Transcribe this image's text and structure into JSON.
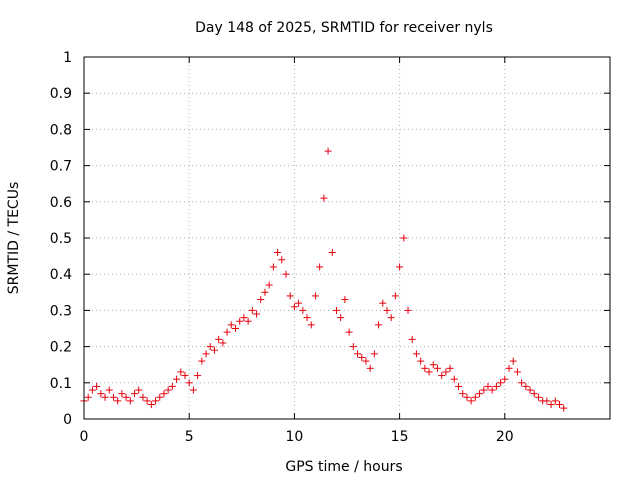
{
  "chart_data": {
    "type": "scatter",
    "title": "Day 148 of 2025, SRMTID for receiver nyls",
    "xlabel": "GPS time / hours",
    "ylabel": "SRMTID / TECUs",
    "xlim": [
      0,
      25
    ],
    "ylim": [
      0,
      1
    ],
    "xticks": [
      0,
      5,
      10,
      15,
      20
    ],
    "yticks": [
      0,
      0.1,
      0.2,
      0.3,
      0.4,
      0.5,
      0.6,
      0.7,
      0.8,
      0.9,
      1
    ],
    "grid": true,
    "marker": "+",
    "color": "#e8000d",
    "series": [
      {
        "name": "SRMTID",
        "x": [
          0.0,
          0.2,
          0.4,
          0.6,
          0.8,
          1.0,
          1.2,
          1.4,
          1.6,
          1.8,
          2.0,
          2.2,
          2.4,
          2.6,
          2.8,
          3.0,
          3.2,
          3.4,
          3.6,
          3.8,
          4.0,
          4.2,
          4.4,
          4.6,
          4.8,
          5.0,
          5.2,
          5.4,
          5.6,
          5.8,
          6.0,
          6.2,
          6.4,
          6.6,
          6.8,
          7.0,
          7.2,
          7.4,
          7.6,
          7.8,
          8.0,
          8.2,
          8.4,
          8.6,
          8.8,
          9.0,
          9.2,
          9.4,
          9.6,
          9.8,
          10.0,
          10.2,
          10.4,
          10.6,
          10.8,
          11.0,
          11.2,
          11.4,
          11.6,
          11.8,
          12.0,
          12.2,
          12.4,
          12.6,
          12.8,
          13.0,
          13.2,
          13.4,
          13.6,
          13.8,
          14.0,
          14.2,
          14.4,
          14.6,
          14.8,
          15.0,
          15.2,
          15.4,
          15.6,
          15.8,
          16.0,
          16.2,
          16.4,
          16.6,
          16.8,
          17.0,
          17.2,
          17.4,
          17.6,
          17.8,
          18.0,
          18.2,
          18.4,
          18.6,
          18.8,
          19.0,
          19.2,
          19.4,
          19.6,
          19.8,
          20.0,
          20.2,
          20.4,
          20.6,
          20.8,
          21.0,
          21.2,
          21.4,
          21.6,
          21.8,
          22.0,
          22.2,
          22.4,
          22.6,
          22.8
        ],
        "y": [
          0.05,
          0.06,
          0.08,
          0.09,
          0.07,
          0.06,
          0.08,
          0.06,
          0.05,
          0.07,
          0.06,
          0.05,
          0.07,
          0.08,
          0.06,
          0.05,
          0.04,
          0.05,
          0.06,
          0.07,
          0.08,
          0.09,
          0.11,
          0.13,
          0.12,
          0.1,
          0.08,
          0.12,
          0.16,
          0.18,
          0.2,
          0.19,
          0.22,
          0.21,
          0.24,
          0.26,
          0.25,
          0.27,
          0.28,
          0.27,
          0.3,
          0.29,
          0.33,
          0.35,
          0.37,
          0.42,
          0.46,
          0.44,
          0.4,
          0.34,
          0.31,
          0.32,
          0.3,
          0.28,
          0.26,
          0.34,
          0.42,
          0.61,
          0.74,
          0.46,
          0.3,
          0.28,
          0.33,
          0.24,
          0.2,
          0.18,
          0.17,
          0.16,
          0.14,
          0.18,
          0.26,
          0.32,
          0.3,
          0.28,
          0.34,
          0.42,
          0.5,
          0.3,
          0.22,
          0.18,
          0.16,
          0.14,
          0.13,
          0.15,
          0.14,
          0.12,
          0.13,
          0.14,
          0.11,
          0.09,
          0.07,
          0.06,
          0.05,
          0.06,
          0.07,
          0.08,
          0.09,
          0.08,
          0.09,
          0.1,
          0.11,
          0.14,
          0.16,
          0.13,
          0.1,
          0.09,
          0.08,
          0.07,
          0.06,
          0.05,
          0.05,
          0.04,
          0.05,
          0.04,
          0.03
        ]
      }
    ]
  }
}
